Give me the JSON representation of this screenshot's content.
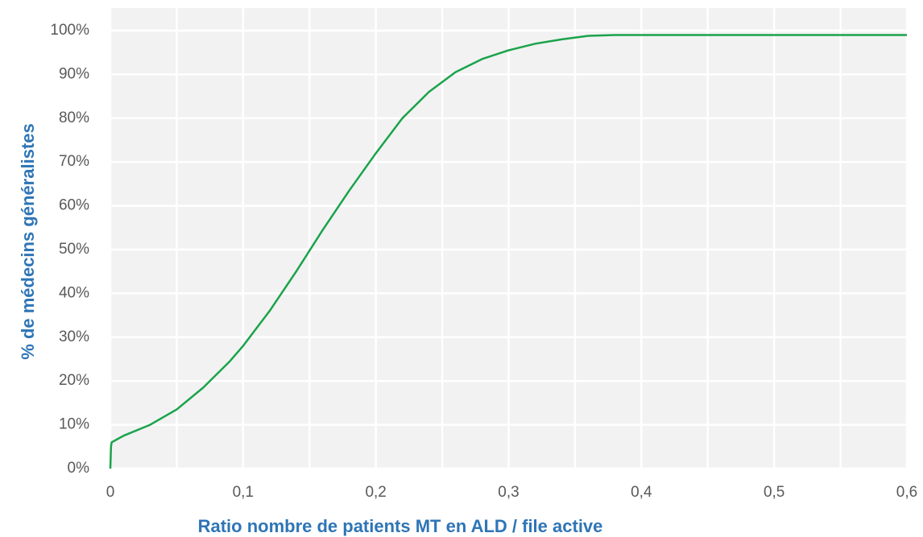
{
  "chart_data": {
    "type": "line",
    "x_axis_label": "Ratio nombre de patients MT en ALD / file active",
    "y_axis_label": "% de médecins généralistes",
    "x": [
      0,
      0.0005,
      0.001,
      0.01,
      0.03,
      0.05,
      0.07,
      0.09,
      0.1,
      0.12,
      0.14,
      0.16,
      0.18,
      0.2,
      0.22,
      0.24,
      0.26,
      0.28,
      0.3,
      0.32,
      0.34,
      0.36,
      0.38,
      0.4,
      0.5,
      0.6
    ],
    "series": [
      {
        "name": "% de médecins généralistes",
        "color": "#1aa34a",
        "values": [
          0,
          5,
          6,
          7.5,
          10,
          13.5,
          18.5,
          24.5,
          28,
          36,
          45,
          54.5,
          63.5,
          72,
          80,
          86,
          90.5,
          93.5,
          95.5,
          97,
          98,
          98.8,
          99,
          99,
          99,
          99
        ]
      }
    ],
    "xlim": [
      0,
      0.6
    ],
    "ylim": [
      0,
      100
    ],
    "xticks": [
      0,
      {
        "value": 0.1,
        "label": "0,1"
      },
      {
        "value": 0.2,
        "label": "0,2"
      },
      {
        "value": 0.3,
        "label": "0,3"
      },
      {
        "value": 0.4,
        "label": "0,4"
      },
      {
        "value": 0.5,
        "label": "0,5"
      },
      {
        "value": 0.6,
        "label": "0,6"
      }
    ],
    "xminor_ticks": [
      0.05,
      0.15,
      0.25,
      0.35,
      0.45,
      0.55
    ],
    "yticks": [
      {
        "value": 0,
        "label": "0%"
      },
      {
        "value": 10,
        "label": "10%"
      },
      {
        "value": 20,
        "label": "20%"
      },
      {
        "value": 30,
        "label": "30%"
      },
      {
        "value": 40,
        "label": "40%"
      },
      {
        "value": 50,
        "label": "50%"
      },
      {
        "value": 60,
        "label": "60%"
      },
      {
        "value": 70,
        "label": "70%"
      },
      {
        "value": 80,
        "label": "80%"
      },
      {
        "value": 90,
        "label": "90%"
      },
      {
        "value": 100,
        "label": "100%"
      }
    ],
    "grid": true
  }
}
